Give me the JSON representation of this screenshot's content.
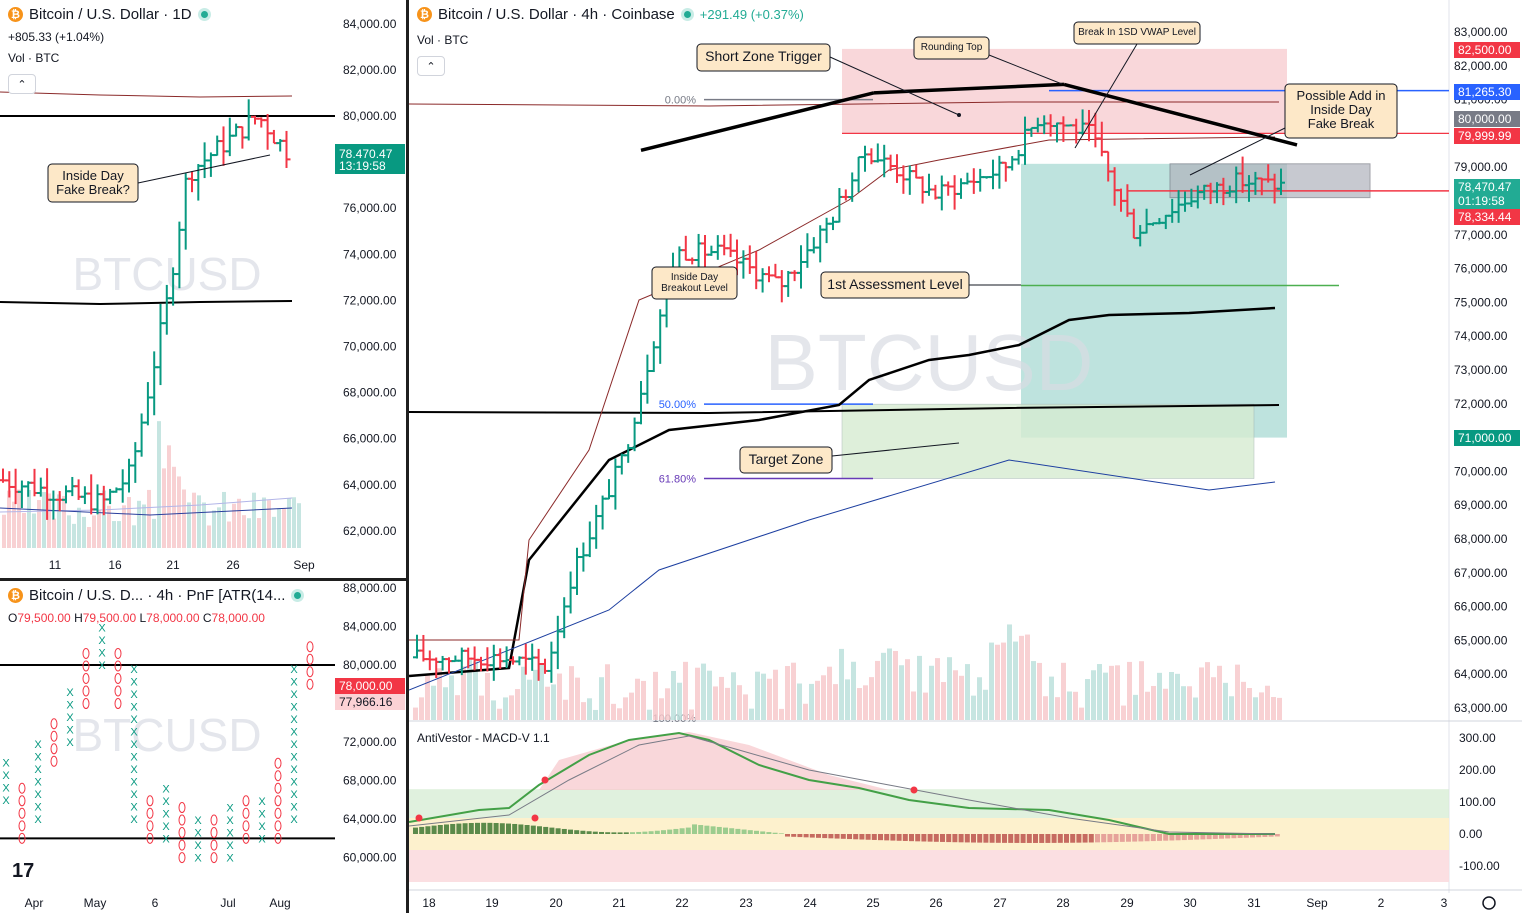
{
  "panel_1d": {
    "title": "Bitcoin / U.S. Dollar · 1D",
    "change": "+805.33 (+1.04%)",
    "vol_label": "Vol · BTC",
    "watermark": "BTCUSD",
    "price_tag": "78,470.47",
    "countdown": "13:19:58",
    "annotation": "Inside Day\nFake Break?",
    "x_labels": [
      "11",
      "16",
      "21",
      "26",
      "Sep"
    ],
    "y_labels": [
      "84,000.00",
      "82,000.00",
      "80,000.00",
      "78,000.00",
      "76,000.00",
      "74,000.00",
      "72,000.00",
      "70,000.00",
      "68,000.00",
      "66,000.00",
      "64,000.00",
      "62,000.00"
    ]
  },
  "panel_pnf": {
    "title": "Bitcoin / U.S. D... · 4h · PnF [ATR(14...",
    "ohlc": {
      "o": "79,500.00",
      "h": "79,500.00",
      "l": "78,000.00",
      "c": "78,000.00"
    },
    "watermark": "BTCUSD",
    "price_tag": "78,000.00",
    "price_tag2": "77,966.16",
    "x_labels": [
      "Apr",
      "May",
      "6",
      "Jul",
      "Aug"
    ],
    "y_labels": [
      "88,000.00",
      "84,000.00",
      "80,000.00",
      "76,000.00",
      "72,000.00",
      "68,000.00",
      "64,000.00",
      "60,000.00"
    ]
  },
  "panel_4h": {
    "title": "Bitcoin / U.S. Dollar · 4h · Coinbase",
    "change": "+291.49 (+0.37%)",
    "vol_label": "Vol · BTC",
    "watermark": "BTCUSD",
    "fib_labels": [
      "0.00%",
      "50.00%",
      "61.80%",
      "100.00%"
    ],
    "annotations": {
      "short_zone": "Short Zone Trigger",
      "rounding_top": "Rounding Top",
      "vwap_break": "Break In 1SD VWAP Level",
      "possible_add": "Possible Add in\nInside Day\nFake Break",
      "inside_day_breakout": "Inside Day\nBreakout Level",
      "assessment": "1st Assessment Level",
      "target_zone": "Target Zone"
    },
    "price_tags": [
      {
        "label": "82,500.00",
        "color": "#f23645"
      },
      {
        "label": "81,265.30",
        "color": "#2962ff"
      },
      {
        "label": "80,000.00",
        "color": "#787b86"
      },
      {
        "label": "79,999.99",
        "color": "#f23645"
      },
      {
        "label": "78,470.47",
        "color": "#22ab94"
      },
      {
        "label": "01:19:58",
        "color": "#22ab94"
      },
      {
        "label": "78,334.44",
        "color": "#f23645"
      },
      {
        "label": "71,000.00",
        "color": "#089981"
      }
    ],
    "y_labels": [
      "83,000.00",
      "82,000.00",
      "81,000.00",
      "80,000.00",
      "79,000.00",
      "78,000.00",
      "77,000.00",
      "76,000.00",
      "75,000.00",
      "74,000.00",
      "73,000.00",
      "72,000.00",
      "71,000.00",
      "70,000.00",
      "69,000.00",
      "68,000.00",
      "67,000.00",
      "66,000.00",
      "65,000.00",
      "64,000.00",
      "63,000.00"
    ],
    "macd_title": "AntiVestor - MACD-V 1.1",
    "macd_y_labels": [
      "300.00",
      "200.00",
      "100.00",
      "0.00",
      "-100.00"
    ],
    "x_labels": [
      "18",
      "19",
      "20",
      "21",
      "22",
      "23",
      "24",
      "25",
      "26",
      "27",
      "28",
      "29",
      "30",
      "31",
      "Sep",
      "2",
      "3"
    ]
  },
  "chart_data": [
    {
      "type": "bar",
      "title": "Bitcoin / U.S. Dollar · 1D",
      "categories": [
        "11",
        "16",
        "21",
        "26",
        "Sep"
      ],
      "ylim": [
        61000,
        85000
      ],
      "last_close": 78470.47,
      "levels": [
        {
          "value": 80000,
          "color": "#000000"
        }
      ]
    },
    {
      "type": "scatter",
      "title": "Bitcoin / U.S. D... · 4h · PnF [ATR(14...",
      "categories": [
        "Apr",
        "May",
        "6",
        "Jul",
        "Aug"
      ],
      "ylim": [
        58000,
        89000
      ],
      "last_close": 78000.0,
      "levels": [
        {
          "value": 80000,
          "color": "#000000"
        },
        {
          "value": 62000,
          "color": "#000000"
        }
      ]
    },
    {
      "type": "bar",
      "title": "Bitcoin / U.S. Dollar · 4h · Coinbase",
      "categories": [
        "18",
        "19",
        "20",
        "21",
        "22",
        "23",
        "24",
        "25",
        "26",
        "27",
        "28",
        "29",
        "30",
        "31",
        "Sep",
        "2",
        "3"
      ],
      "ylim": [
        62600,
        83400
      ],
      "last_close": 78470.47,
      "fib_levels": [
        {
          "label": "0.00%",
          "value": 81000
        },
        {
          "label": "50.00%",
          "value": 71990
        },
        {
          "label": "61.80%",
          "value": 69790
        },
        {
          "label": "100.00%",
          "value": 62700
        }
      ],
      "zones": [
        {
          "name": "Short Zone Trigger",
          "from": 79999.99,
          "to": 82500,
          "color": "#f7c6cb"
        },
        {
          "name": "Target Zone",
          "from": 69800,
          "to": 71990,
          "color": "#d6ecd2"
        },
        {
          "name": "position_long",
          "from": 71000,
          "to": 79100,
          "color": "#bde3df"
        }
      ],
      "levels": [
        {
          "value": 81265.3,
          "color": "#2962ff"
        },
        {
          "value": 79999.99,
          "color": "#f23645"
        },
        {
          "value": 78334.44,
          "color": "#f23645"
        },
        {
          "value": 75500,
          "color": "#4caf50"
        }
      ]
    }
  ]
}
